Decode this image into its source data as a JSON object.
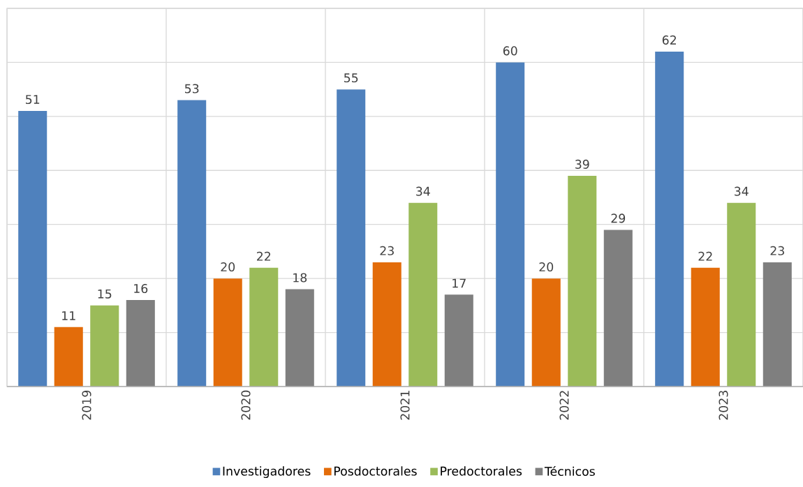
{
  "chart_data": {
    "type": "bar",
    "categories": [
      "2019",
      "2020",
      "2021",
      "2022",
      "2023"
    ],
    "series": [
      {
        "name": "Investigadores",
        "color": "#4f81bd",
        "values": [
          51,
          53,
          55,
          60,
          62
        ]
      },
      {
        "name": "Posdoctorales",
        "color": "#e36c0a",
        "values": [
          11,
          20,
          23,
          20,
          22
        ]
      },
      {
        "name": "Predoctorales",
        "color": "#9bbb59",
        "values": [
          15,
          22,
          34,
          39,
          34
        ]
      },
      {
        "name": "Técnicos",
        "color": "#7f7f7f",
        "values": [
          16,
          18,
          17,
          29,
          23
        ]
      }
    ],
    "ylim": [
      0,
      70
    ],
    "yticks": [
      {
        "value": 0,
        "label": null
      },
      {
        "value": 10,
        "label": null
      },
      {
        "value": 20,
        "label": null
      },
      {
        "value": 30,
        "label": null
      },
      {
        "value": 40,
        "label": null
      },
      {
        "value": 50,
        "label": null
      },
      {
        "value": 60,
        "label": null
      },
      {
        "value": 70,
        "label": null
      }
    ],
    "tick_labels": "x",
    "grid": true,
    "legend": "bottom",
    "data_labels": true
  }
}
